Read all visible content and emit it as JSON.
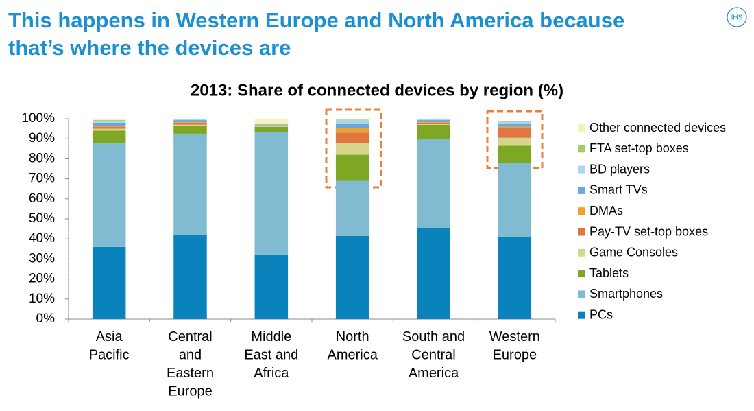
{
  "header": {
    "title": "This happens in Western Europe and North America because\nthat’s where the devices are",
    "logo": "IHS"
  },
  "chart_data": {
    "type": "stacked-bar",
    "title": "2013: Share of connected devices by region (%)",
    "categories": [
      "Asia\nPacific",
      "Central\nand\nEastern\nEurope",
      "Middle\nEast and\nAfrica",
      "North\nAmerica",
      "South and\nCentral\nAmerica",
      "Western\nEurope"
    ],
    "series": [
      {
        "name": "PCs",
        "color": "#0a83bd",
        "values": [
          36,
          42,
          32,
          41.5,
          45.5,
          41
        ]
      },
      {
        "name": "Smartphones",
        "color": "#80bbd1",
        "values": [
          52,
          50.5,
          61.5,
          27.5,
          44.5,
          37
        ]
      },
      {
        "name": "Tablets",
        "color": "#7ea823",
        "values": [
          6,
          4,
          2.5,
          13,
          7,
          8.5
        ]
      },
      {
        "name": "Game Consoles",
        "color": "#d4d68b",
        "values": [
          1,
          0.5,
          0.3,
          6,
          0.5,
          4
        ]
      },
      {
        "name": "Pay-TV set-top boxes",
        "color": "#e07640",
        "values": [
          1,
          1,
          0.3,
          5,
          0.5,
          5
        ]
      },
      {
        "name": "DMAs",
        "color": "#eda22c",
        "values": [
          0.5,
          0.3,
          0.2,
          2.5,
          0.3,
          0.5
        ]
      },
      {
        "name": "Smart TVs",
        "color": "#6fa5d7",
        "values": [
          1.5,
          1,
          0.3,
          2,
          1,
          1.5
        ]
      },
      {
        "name": "BD players",
        "color": "#a7d8ec",
        "values": [
          1,
          0.5,
          0.2,
          1.8,
          0.5,
          1
        ]
      },
      {
        "name": "FTA set-top boxes",
        "color": "#a7c96b",
        "values": [
          0.3,
          0.2,
          0.2,
          0.2,
          0.2,
          0.2
        ]
      },
      {
        "name": "Other connected devices",
        "color": "#f4f4ba",
        "values": [
          0.7,
          0,
          2.5,
          0.5,
          0,
          0.3
        ]
      }
    ],
    "ylim": [
      0,
      100
    ],
    "yticks": [
      {
        "value": 0,
        "label": "0%"
      },
      {
        "value": 10,
        "label": "10%"
      },
      {
        "value": 20,
        "label": "20%"
      },
      {
        "value": 30,
        "label": "30%"
      },
      {
        "value": 40,
        "label": "40%"
      },
      {
        "value": 50,
        "label": "50%"
      },
      {
        "value": 60,
        "label": "60%"
      },
      {
        "value": 70,
        "label": "70%"
      },
      {
        "value": 80,
        "label": "80%"
      },
      {
        "value": 90,
        "label": "90%"
      },
      {
        "value": 100,
        "label": "100%"
      }
    ],
    "grid": false,
    "legend": "right"
  }
}
